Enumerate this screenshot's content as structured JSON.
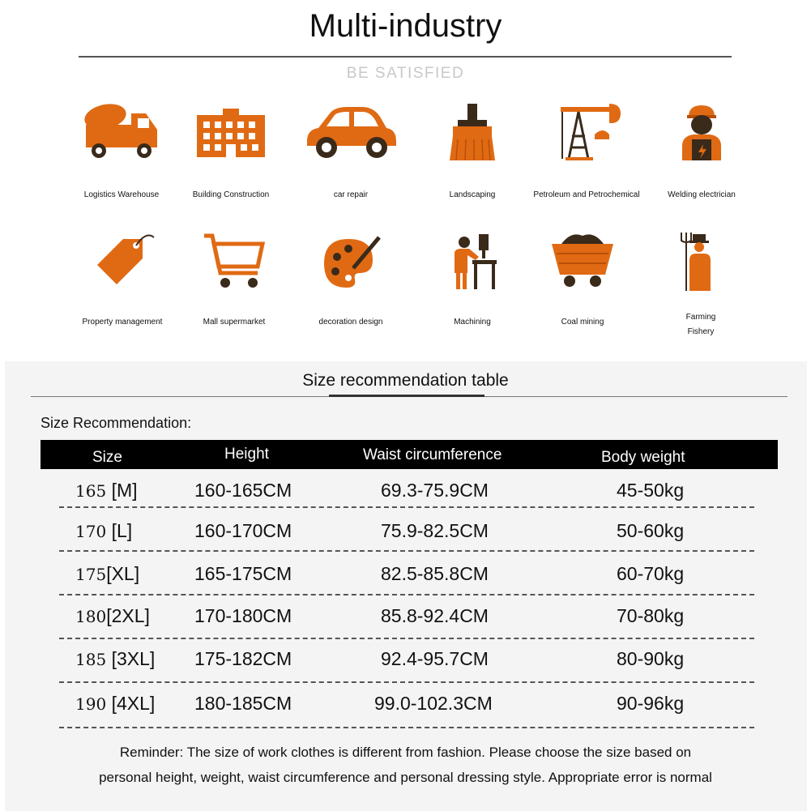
{
  "header": {
    "title": "Multi-industry",
    "subtitle": "BE SATISFIED"
  },
  "colors": {
    "icon_orange": "#e06a13",
    "icon_dark": "#3a2a1a",
    "table_header_bg": "#000000"
  },
  "industries_row1": [
    {
      "icon": "cement-truck-icon",
      "label": "Logistics Warehouse"
    },
    {
      "icon": "building-icon",
      "label": "Building Construction"
    },
    {
      "icon": "car-icon",
      "label": "car repair"
    },
    {
      "icon": "brush-icon",
      "label": "Landscaping"
    },
    {
      "icon": "oil-pump-icon",
      "label": "Petroleum and Petrochemical"
    },
    {
      "icon": "worker-icon",
      "label": "Welding electrician"
    }
  ],
  "industries_row2": [
    {
      "icon": "price-tag-icon",
      "label": "Property management"
    },
    {
      "icon": "shopping-cart-icon",
      "label": "Mall supermarket"
    },
    {
      "icon": "palette-icon",
      "label": "decoration design"
    },
    {
      "icon": "machinist-icon",
      "label": "Machining"
    },
    {
      "icon": "mine-cart-icon",
      "label": "Coal mining"
    },
    {
      "icon": "farmer-icon",
      "label": "Farming",
      "label2": "Fishery"
    }
  ],
  "size_section": {
    "title": "Size recommendation table",
    "caption": "Size Recommendation:",
    "headers": [
      "Size",
      "Height",
      "Waist circumference",
      "Body weight"
    ],
    "rows": [
      {
        "num": "165",
        "code": "[M]",
        "height": "160-165CM",
        "waist": "69.3-75.9CM",
        "weight": "45-50kg"
      },
      {
        "num": "170",
        "code": "[L]",
        "height": "160-170CM",
        "waist": "75.9-82.5CM",
        "weight": "50-60kg"
      },
      {
        "num": "175",
        "code": "[XL]",
        "height": "165-175CM",
        "waist": "82.5-85.8CM",
        "weight": "60-70kg"
      },
      {
        "num": "180",
        "code": "[2XL]",
        "height": "170-180CM",
        "waist": "85.8-92.4CM",
        "weight": "70-80kg"
      },
      {
        "num": "185",
        "code": "[3XL]",
        "height": "175-182CM",
        "waist": "92.4-95.7CM",
        "weight": "80-90kg"
      },
      {
        "num": "190",
        "code": "[4XL]",
        "height": "180-185CM",
        "waist": "99.0-102.3CM",
        "weight": "90-96kg"
      }
    ],
    "reminder_line1": "Reminder: The size of work clothes is different from fashion. Please choose the size based on",
    "reminder_line2": "personal height, weight, waist circumference and personal dressing style. Appropriate error is normal"
  }
}
